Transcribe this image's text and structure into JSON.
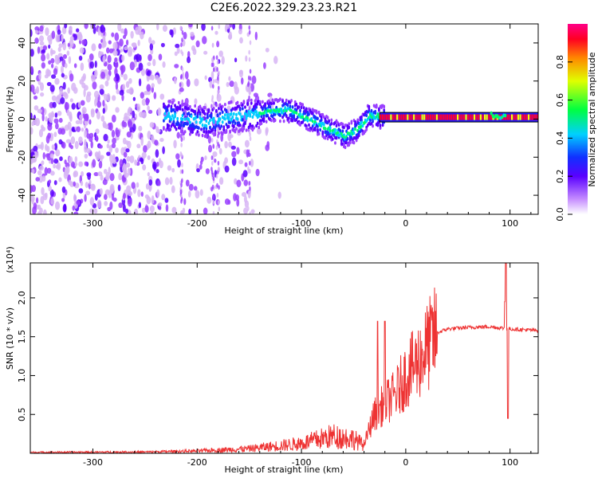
{
  "title": "C2E6.2022.329.23.23.R21",
  "colors": {
    "snr_line": "#ee3333",
    "frame": "#000000",
    "spectrogram_scale": [
      "#d7b5f5",
      "#9a40ff",
      "#5a00ff",
      "#1a30ff",
      "#00ccff",
      "#00ff66",
      "#ffff00",
      "#ff9900",
      "#ff0033",
      "#ff00aa"
    ]
  },
  "chart_data": [
    {
      "type": "heatmap",
      "name": "spectrogram",
      "xlabel": "Height of straight line (km)",
      "ylabel": "Frequency (Hz)",
      "xlim": [
        -360,
        127
      ],
      "ylim": [
        -50,
        50
      ],
      "xticks": [
        -300,
        -200,
        -100,
        0,
        100
      ],
      "yticks": [
        -40,
        -20,
        0,
        20,
        40
      ],
      "colorbar": {
        "label": "Normalized spectral amplitude",
        "range": [
          0,
          1
        ],
        "ticks": [
          "0.0",
          "0.2",
          "0.4",
          "0.6",
          "0.8"
        ]
      },
      "ridge_frequency_hz": [
        {
          "x": -230,
          "f": 2
        },
        {
          "x": -210,
          "f": 0
        },
        {
          "x": -190,
          "f": -2
        },
        {
          "x": -170,
          "f": 1
        },
        {
          "x": -150,
          "f": 2
        },
        {
          "x": -130,
          "f": 4
        },
        {
          "x": -115,
          "f": 5
        },
        {
          "x": -100,
          "f": 2
        },
        {
          "x": -85,
          "f": -2
        },
        {
          "x": -70,
          "f": -6
        },
        {
          "x": -58,
          "f": -9
        },
        {
          "x": -45,
          "f": -5
        },
        {
          "x": -35,
          "f": 2
        },
        {
          "x": -20,
          "f": 1
        },
        {
          "x": 0,
          "f": 1
        },
        {
          "x": 60,
          "f": 1
        },
        {
          "x": 90,
          "f": 2
        },
        {
          "x": 127,
          "f": 1
        }
      ]
    },
    {
      "type": "line",
      "name": "snr",
      "xlabel": "Height of straight line (km)",
      "ylabel": "SNR (10 * v/v)",
      "y_multiplier": "(x10⁴)",
      "xlim": [
        -360,
        127
      ],
      "ylim": [
        0,
        24500
      ],
      "xticks": [
        -300,
        -200,
        -100,
        0,
        100
      ],
      "yticks": [
        "0.5",
        "1.0",
        "1.5",
        "2.0"
      ],
      "ytick_values": [
        5000,
        10000,
        15000,
        20000
      ],
      "envelope": [
        {
          "x": -360,
          "y": 150
        },
        {
          "x": -250,
          "y": 200
        },
        {
          "x": -200,
          "y": 350
        },
        {
          "x": -150,
          "y": 700
        },
        {
          "x": -100,
          "y": 1500
        },
        {
          "x": -70,
          "y": 2600
        },
        {
          "x": -50,
          "y": 2200
        },
        {
          "x": -40,
          "y": 1200
        },
        {
          "x": -30,
          "y": 5000
        },
        {
          "x": -20,
          "y": 6500
        },
        {
          "x": -10,
          "y": 7500
        },
        {
          "x": 0,
          "y": 10000
        },
        {
          "x": 10,
          "y": 11500
        },
        {
          "x": 20,
          "y": 13500
        },
        {
          "x": 30,
          "y": 15500
        },
        {
          "x": 40,
          "y": 16000
        },
        {
          "x": 60,
          "y": 16200
        },
        {
          "x": 80,
          "y": 16300
        },
        {
          "x": 100,
          "y": 16000
        },
        {
          "x": 127,
          "y": 15800
        }
      ],
      "spikes": [
        {
          "x": -27,
          "y": 17000
        },
        {
          "x": -20,
          "y": 17000
        },
        {
          "x": 96,
          "y": 24500
        },
        {
          "x": 98,
          "y": 4500
        },
        {
          "x": 95,
          "y": 19500
        }
      ]
    }
  ]
}
